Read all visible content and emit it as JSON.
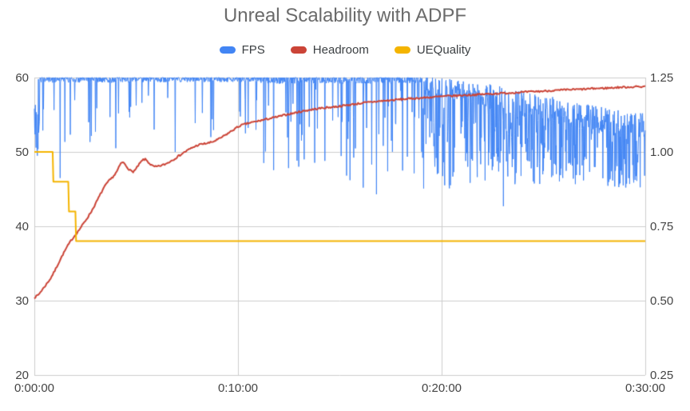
{
  "chart_data": {
    "type": "line",
    "title": "Unreal Scalability with ADPF",
    "grid": {
      "show": true,
      "color": "#cccccc"
    },
    "legend": {
      "position": "top"
    },
    "x_axis": {
      "min": 0,
      "max": 1800,
      "unit": "h:mm:ss",
      "tick_values": [
        0,
        600,
        1200,
        1800
      ],
      "tick_labels": [
        "0:00:00",
        "0:10:00",
        "0:20:00",
        "0:30:00"
      ]
    },
    "left_axis": {
      "min": 20,
      "max": 60,
      "tick_values": [
        60,
        50,
        40,
        30,
        20
      ],
      "tick_labels": [
        "60",
        "50",
        "40",
        "30",
        "20"
      ]
    },
    "right_axis": {
      "min": 0.25,
      "max": 1.25,
      "tick_values": [
        1.25,
        1.0,
        0.75,
        0.5,
        0.25
      ],
      "tick_labels": [
        "1.25",
        "1.00",
        "0.75",
        "0.50",
        "0.25"
      ]
    },
    "series": [
      {
        "name": "FPS",
        "color": "#4285f4",
        "axis": "left",
        "type": "generated",
        "line_width": 1,
        "step_s": 1,
        "seed": 42,
        "segments": [
          {
            "t0": 0,
            "t1": 15,
            "base0": 54,
            "base1": 60,
            "jitter": 3.0,
            "dip_prob": 0.45,
            "dip_min": 49,
            "dip_max": 57
          },
          {
            "t0": 15,
            "t1": 240,
            "base0": 60,
            "base1": 60,
            "jitter": 0.5,
            "dip_prob": 0.08,
            "dip_min": 50,
            "dip_max": 58
          },
          {
            "t0": 240,
            "t1": 660,
            "base0": 60,
            "base1": 60,
            "jitter": 0.45,
            "dip_prob": 0.06,
            "dip_min": 52,
            "dip_max": 58.5
          },
          {
            "t0": 660,
            "t1": 1140,
            "base0": 60,
            "base1": 60,
            "jitter": 0.6,
            "dip_prob": 0.1,
            "dip_min": 46.5,
            "dip_max": 58.5
          },
          {
            "t0": 1140,
            "t1": 1320,
            "base0": 59.5,
            "base1": 58.2,
            "jitter": 1.4,
            "dip_prob": 0.33,
            "dip_min": 45,
            "dip_max": 56
          },
          {
            "t0": 1320,
            "t1": 1680,
            "base0": 58.2,
            "base1": 54.8,
            "jitter": 1.8,
            "dip_prob": 0.45,
            "dip_min": 45.5,
            "dip_max": 55
          },
          {
            "t0": 1680,
            "t1": 1800,
            "base0": 54.8,
            "base1": 54.0,
            "jitter": 1.8,
            "dip_prob": 0.45,
            "dip_min": 45,
            "dip_max": 53
          }
        ],
        "deep_dips": [
          [
            8,
            50
          ],
          [
            76,
            46.5
          ],
          [
            240,
            50.5
          ],
          [
            415,
            50.0
          ],
          [
            520,
            52
          ],
          [
            795,
            49
          ],
          [
            930,
            46.2
          ],
          [
            969,
            45.2
          ],
          [
            1008,
            44.3
          ],
          [
            1085,
            47.5
          ],
          [
            1382,
            42.7
          ]
        ]
      },
      {
        "name": "Headroom",
        "color": "#cb4437",
        "axis": "right",
        "type": "keypoints",
        "line_width": 2,
        "jitter": 0.003,
        "points": [
          [
            0,
            0.51
          ],
          [
            12,
            0.52
          ],
          [
            24,
            0.538
          ],
          [
            36,
            0.556
          ],
          [
            48,
            0.575
          ],
          [
            60,
            0.6
          ],
          [
            72,
            0.628
          ],
          [
            84,
            0.655
          ],
          [
            96,
            0.68
          ],
          [
            108,
            0.702
          ],
          [
            120,
            0.72
          ],
          [
            132,
            0.738
          ],
          [
            144,
            0.758
          ],
          [
            156,
            0.778
          ],
          [
            168,
            0.8
          ],
          [
            180,
            0.825
          ],
          [
            192,
            0.852
          ],
          [
            204,
            0.878
          ],
          [
            216,
            0.898
          ],
          [
            228,
            0.912
          ],
          [
            238,
            0.925
          ],
          [
            246,
            0.94
          ],
          [
            253,
            0.958
          ],
          [
            259,
            0.966
          ],
          [
            266,
            0.96
          ],
          [
            274,
            0.948
          ],
          [
            282,
            0.938
          ],
          [
            290,
            0.933
          ],
          [
            298,
            0.94
          ],
          [
            306,
            0.954
          ],
          [
            314,
            0.966
          ],
          [
            321,
            0.974
          ],
          [
            328,
            0.975
          ],
          [
            336,
            0.965
          ],
          [
            345,
            0.955
          ],
          [
            354,
            0.95
          ],
          [
            364,
            0.951
          ],
          [
            376,
            0.955
          ],
          [
            388,
            0.96
          ],
          [
            400,
            0.968
          ],
          [
            413,
            0.977
          ],
          [
            426,
            0.987
          ],
          [
            439,
            0.997
          ],
          [
            452,
            1.006
          ],
          [
            465,
            1.014
          ],
          [
            478,
            1.021
          ],
          [
            491,
            1.026
          ],
          [
            504,
            1.028
          ],
          [
            517,
            1.031
          ],
          [
            530,
            1.036
          ],
          [
            543,
            1.043
          ],
          [
            556,
            1.052
          ],
          [
            569,
            1.061
          ],
          [
            582,
            1.071
          ],
          [
            595,
            1.081
          ],
          [
            608,
            1.089
          ],
          [
            622,
            1.094
          ],
          [
            640,
            1.099
          ],
          [
            660,
            1.104
          ],
          [
            680,
            1.109
          ],
          [
            700,
            1.114
          ],
          [
            720,
            1.119
          ],
          [
            745,
            1.126
          ],
          [
            770,
            1.132
          ],
          [
            795,
            1.138
          ],
          [
            820,
            1.143
          ],
          [
            845,
            1.147
          ],
          [
            870,
            1.15
          ],
          [
            895,
            1.153
          ],
          [
            920,
            1.157
          ],
          [
            945,
            1.161
          ],
          [
            970,
            1.165
          ],
          [
            995,
            1.168
          ],
          [
            1020,
            1.171
          ],
          [
            1045,
            1.173
          ],
          [
            1070,
            1.176
          ],
          [
            1095,
            1.178
          ],
          [
            1120,
            1.18
          ],
          [
            1145,
            1.182
          ],
          [
            1170,
            1.184
          ],
          [
            1195,
            1.186
          ],
          [
            1220,
            1.188
          ],
          [
            1245,
            1.189
          ],
          [
            1270,
            1.191
          ],
          [
            1295,
            1.192
          ],
          [
            1320,
            1.194
          ],
          [
            1345,
            1.195
          ],
          [
            1370,
            1.197
          ],
          [
            1395,
            1.198
          ],
          [
            1420,
            1.2
          ],
          [
            1445,
            1.201
          ],
          [
            1470,
            1.203
          ],
          [
            1495,
            1.204
          ],
          [
            1520,
            1.206
          ],
          [
            1545,
            1.207
          ],
          [
            1570,
            1.209
          ],
          [
            1595,
            1.21
          ],
          [
            1620,
            1.211
          ],
          [
            1645,
            1.213
          ],
          [
            1670,
            1.214
          ],
          [
            1695,
            1.215
          ],
          [
            1720,
            1.217
          ],
          [
            1745,
            1.218
          ],
          [
            1770,
            1.219
          ],
          [
            1800,
            1.22
          ]
        ]
      },
      {
        "name": "UEQuality",
        "color": "#f4b400",
        "axis": "right",
        "type": "steps",
        "line_width": 2,
        "points": [
          [
            0,
            1.0
          ],
          [
            54,
            1.0
          ],
          [
            56,
            0.9
          ],
          [
            100,
            0.9
          ],
          [
            102,
            0.8
          ],
          [
            121,
            0.8
          ],
          [
            123,
            0.7
          ],
          [
            1800,
            0.7
          ]
        ]
      }
    ]
  }
}
